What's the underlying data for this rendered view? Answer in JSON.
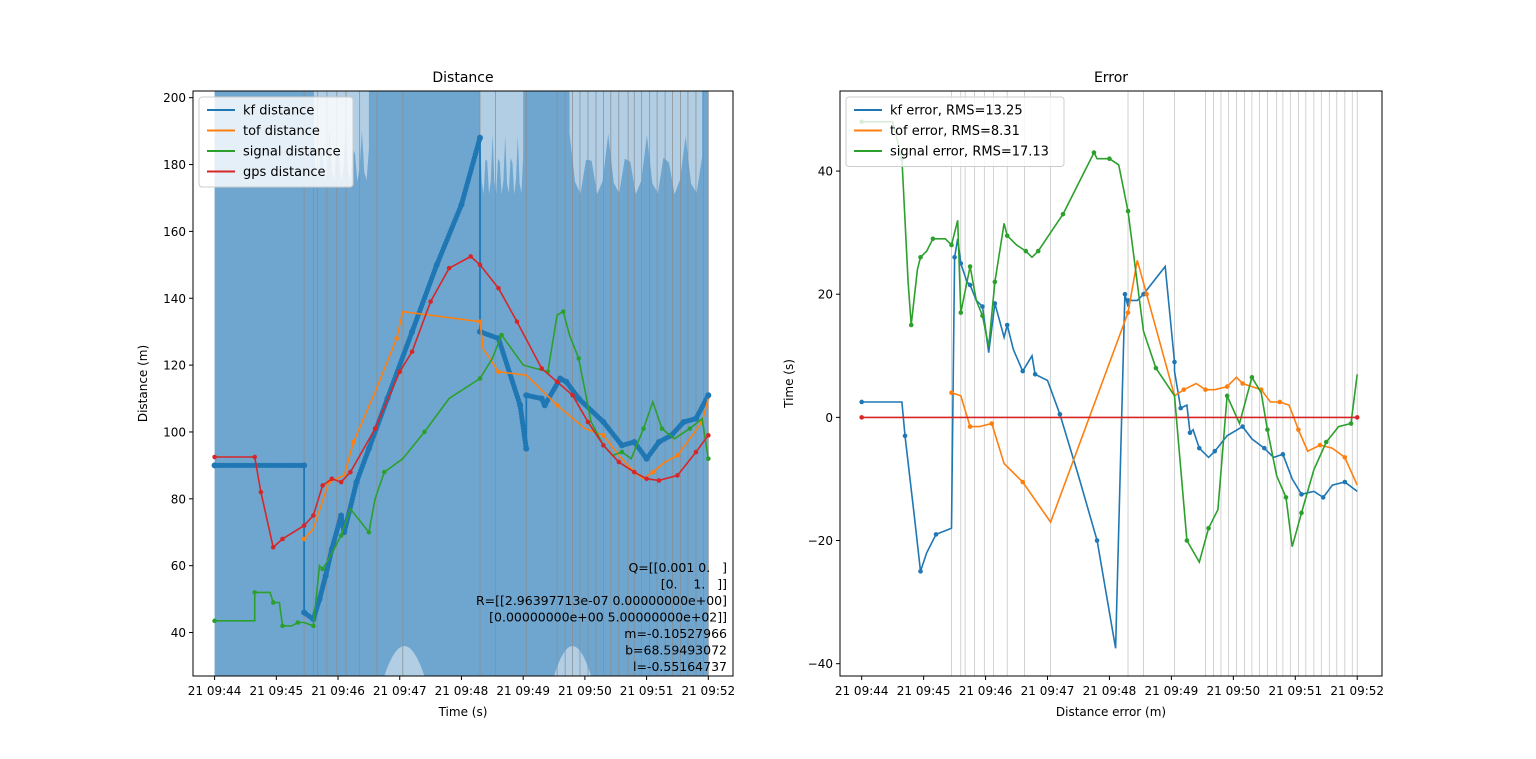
{
  "chart_data": [
    {
      "type": "line",
      "title": "Distance",
      "xlabel": "Time (s)",
      "ylabel": "Distance (m)",
      "x_tick_labels": [
        "21 09:44",
        "21 09:45",
        "21 09:46",
        "21 09:47",
        "21 09:48",
        "21 09:49",
        "21 09:50",
        "21 09:51",
        "21 09:52"
      ],
      "x_tick_values": [
        0,
        1,
        2,
        3,
        4,
        5,
        6,
        7,
        8
      ],
      "xlim": [
        -0.35,
        8.4
      ],
      "ylim": [
        27,
        202
      ],
      "y_ticks": [
        40,
        60,
        80,
        100,
        120,
        140,
        160,
        180,
        200
      ],
      "legend_position": "upper-left",
      "grid": false,
      "colors": {
        "kf": "#1f77b4",
        "tof": "#ff7f0e",
        "signal": "#2ca02c",
        "gps": "#d62728",
        "band": "#6fa6d0",
        "band_light": "#c2d8ea",
        "vline": "#8c8c8c"
      },
      "measurement_lines_x": [
        1.45,
        1.6,
        1.67,
        1.82,
        1.98,
        2.13,
        2.35,
        2.63,
        3.05,
        4.3,
        4.55,
        5.05,
        5.55,
        5.68,
        5.8,
        5.92,
        6.05,
        6.18,
        6.3,
        6.42,
        6.55,
        6.7,
        6.8,
        6.92,
        7.05,
        7.17,
        7.3,
        7.42,
        7.55,
        7.67,
        7.8,
        7.92,
        8.0
      ],
      "series": [
        {
          "name": "kf distance",
          "x": [
            0,
            1.45,
            1.45,
            1.6,
            1.7,
            1.8,
            1.9,
            2.05,
            2.1,
            2.3,
            2.5,
            2.8,
            3.2,
            3.6,
            4.0,
            4.3,
            4.3,
            4.6,
            4.95,
            5.05,
            5.05,
            5.3,
            5.35,
            5.6,
            5.7,
            5.9,
            6.3,
            6.6,
            6.8,
            7.0,
            7.2,
            7.4,
            7.6,
            7.8,
            8.0
          ],
          "y": [
            90,
            90,
            46,
            44,
            50,
            57,
            65,
            75,
            70,
            85,
            95,
            110,
            130,
            150,
            168,
            188,
            130,
            128,
            108,
            95,
            111,
            110,
            108,
            116,
            115,
            110,
            103,
            96,
            97,
            92,
            97,
            99,
            103,
            104,
            111
          ]
        },
        {
          "name": "tof distance",
          "x": [
            1.45,
            1.6,
            1.85,
            2.1,
            2.25,
            2.6,
            2.95,
            3.05,
            4.3,
            4.35,
            4.6,
            5.05,
            5.55,
            6.0,
            6.3,
            6.55,
            6.8,
            6.95,
            7.1,
            7.3,
            7.5,
            7.7,
            7.9,
            8.0
          ],
          "y": [
            68,
            71,
            85,
            87,
            97,
            112,
            128,
            136,
            133,
            125,
            118,
            117,
            108,
            101,
            99,
            93,
            88,
            86,
            88,
            91,
            93,
            98,
            103,
            110
          ]
        },
        {
          "name": "signal distance",
          "x": [
            0,
            0.65,
            0.65,
            0.9,
            0.95,
            1.05,
            1.1,
            1.25,
            1.35,
            1.45,
            1.6,
            1.7,
            1.75,
            1.85,
            2.05,
            2.2,
            2.5,
            2.6,
            2.75,
            3.05,
            3.4,
            3.8,
            4.3,
            4.5,
            4.65,
            5.0,
            5.4,
            5.55,
            5.65,
            5.75,
            5.9,
            6.1,
            6.3,
            6.45,
            6.6,
            6.75,
            6.95,
            7.1,
            7.25,
            7.45,
            7.7,
            7.9,
            8.0
          ],
          "y": [
            43.5,
            43.5,
            52,
            52,
            49,
            49,
            42,
            42,
            43,
            43,
            42,
            60,
            59,
            62,
            69,
            77,
            70,
            80,
            88,
            92,
            100,
            110,
            116,
            122,
            129,
            120,
            118,
            135,
            136,
            129,
            122,
            103,
            96,
            93,
            94,
            92,
            101,
            109,
            101,
            98,
            101,
            104,
            92
          ]
        },
        {
          "name": "gps distance",
          "x": [
            0,
            0.65,
            0.75,
            0.95,
            1.1,
            1.45,
            1.6,
            1.75,
            1.9,
            2.05,
            2.2,
            2.6,
            3.0,
            3.2,
            3.5,
            3.8,
            4.15,
            4.3,
            4.6,
            4.9,
            5.3,
            5.55,
            5.8,
            6.05,
            6.3,
            6.55,
            6.8,
            7.0,
            7.2,
            7.5,
            7.8,
            8.0
          ],
          "y": [
            92.5,
            92.5,
            82,
            65.5,
            68,
            72,
            75,
            84,
            86,
            85,
            88,
            101,
            118,
            124,
            139,
            149,
            152.5,
            150,
            143,
            133,
            119,
            115,
            111,
            103,
            96,
            91,
            88,
            86,
            85.5,
            87,
            94,
            99
          ]
        }
      ],
      "annotation_lines": [
        "Q=[[0.001 0.   ]",
        "[0.    1.   ]]",
        "R=[[2.96397713e-07 0.00000000e+00]",
        "[0.00000000e+00 5.00000000e+02]]",
        "m=-0.10527966",
        "b=68.59493072",
        "l=-0.55164737"
      ]
    },
    {
      "type": "line",
      "title": "Error",
      "xlabel": "Distance error (m)",
      "ylabel": "Time (s)",
      "x_tick_labels": [
        "21 09:44",
        "21 09:45",
        "21 09:46",
        "21 09:47",
        "21 09:48",
        "21 09:49",
        "21 09:50",
        "21 09:51",
        "21 09:52"
      ],
      "x_tick_values": [
        0,
        1,
        2,
        3,
        4,
        5,
        6,
        7,
        8
      ],
      "xlim": [
        -0.35,
        8.4
      ],
      "ylim": [
        -42,
        53
      ],
      "y_ticks": [
        -40,
        -20,
        0,
        20,
        40
      ],
      "legend_position": "upper-left",
      "grid": false,
      "colors": {
        "kf": "#1f77b4",
        "tof": "#ff7f0e",
        "signal": "#2ca02c",
        "gps": "#d62728",
        "vline": "#b0b0b0"
      },
      "measurement_lines_x": [
        1.45,
        1.6,
        1.67,
        1.82,
        1.98,
        2.13,
        2.35,
        2.63,
        3.05,
        4.3,
        4.55,
        5.05,
        5.55,
        5.68,
        5.8,
        5.92,
        6.05,
        6.18,
        6.3,
        6.42,
        6.55,
        6.7,
        6.8,
        6.92,
        7.05,
        7.17,
        7.3,
        7.42,
        7.55,
        7.67,
        7.8,
        7.92,
        8.0
      ],
      "series": [
        {
          "name": "kf error, RMS=13.25",
          "x": [
            0,
            0.65,
            0.7,
            0.85,
            0.95,
            1.05,
            1.2,
            1.45,
            1.5,
            1.55,
            1.6,
            1.7,
            1.75,
            1.85,
            1.95,
            2.05,
            2.15,
            2.3,
            2.35,
            2.45,
            2.6,
            2.75,
            2.8,
            3.0,
            3.2,
            3.5,
            3.8,
            4.1,
            4.25,
            4.3,
            4.3,
            4.45,
            4.55,
            4.9,
            5.05,
            5.05,
            5.15,
            5.25,
            5.3,
            5.35,
            5.45,
            5.6,
            5.7,
            5.9,
            6.15,
            6.3,
            6.5,
            6.65,
            6.8,
            6.95,
            7.1,
            7.3,
            7.45,
            7.6,
            7.8,
            8.0
          ],
          "y": [
            2.5,
            2.5,
            -3,
            -16,
            -25,
            -22,
            -19,
            -18,
            26,
            29,
            25,
            22,
            21.5,
            19,
            18,
            10.5,
            18.5,
            13,
            15,
            11,
            7.5,
            10,
            7,
            6,
            0.5,
            -9.5,
            -20,
            -37.5,
            20,
            18,
            19,
            19,
            20,
            24.5,
            9,
            7.5,
            1.5,
            2,
            -2.5,
            -2,
            -5,
            -6.5,
            -5.5,
            -3,
            -1.5,
            -3.5,
            -5,
            -6.5,
            -6,
            -10,
            -12.5,
            -12,
            -13,
            -11,
            -10.5,
            -12
          ]
        },
        {
          "name": "tof error, RMS=8.31",
          "x": [
            1.45,
            1.6,
            1.75,
            1.9,
            2.1,
            2.3,
            2.6,
            3.05,
            4.3,
            4.45,
            4.6,
            5.05,
            5.2,
            5.4,
            5.55,
            5.7,
            5.9,
            6.05,
            6.15,
            6.3,
            6.45,
            6.6,
            6.75,
            6.9,
            7.05,
            7.2,
            7.4,
            7.6,
            7.8,
            8.0
          ],
          "y": [
            4,
            3.5,
            -1.5,
            -1.5,
            -1,
            -7.5,
            -10.5,
            -17,
            17,
            25.5,
            20,
            3.5,
            4.5,
            5.5,
            4.5,
            4.5,
            5,
            6.5,
            5.5,
            5,
            4.5,
            2.5,
            2.5,
            2,
            -2,
            -5.5,
            -4.5,
            -5,
            -6.5,
            -11
          ]
        },
        {
          "name": "signal error, RMS=17.13",
          "x": [
            0,
            0.5,
            0.65,
            0.75,
            0.8,
            0.9,
            0.95,
            1.05,
            1.15,
            1.35,
            1.45,
            1.55,
            1.6,
            1.7,
            1.75,
            1.85,
            1.95,
            2.05,
            2.15,
            2.3,
            2.35,
            2.5,
            2.65,
            2.75,
            2.85,
            3.05,
            3.25,
            3.5,
            3.75,
            3.8,
            4.0,
            4.15,
            4.3,
            4.55,
            4.75,
            5.05,
            5.25,
            5.45,
            5.6,
            5.75,
            5.9,
            6.1,
            6.3,
            6.45,
            6.55,
            6.7,
            6.85,
            6.95,
            7.1,
            7.3,
            7.5,
            7.7,
            7.9,
            8.0
          ],
          "y": [
            48,
            48,
            42,
            22,
            15,
            24,
            26,
            27,
            29,
            29,
            28,
            32,
            17,
            22,
            24.5,
            19,
            16.5,
            11.5,
            22,
            31.5,
            29.5,
            28,
            27,
            26,
            27,
            30,
            33,
            38,
            43,
            42,
            42,
            41,
            33.5,
            14,
            8,
            3.5,
            -20,
            -23.5,
            -18,
            -15,
            3.5,
            -1,
            6.5,
            4,
            -2,
            -9.5,
            -13,
            -21,
            -15.5,
            -8.5,
            -4,
            -1.5,
            -1,
            7
          ]
        },
        {
          "name": "",
          "x": [
            0,
            8.0
          ],
          "y": [
            0,
            0
          ]
        }
      ]
    }
  ]
}
